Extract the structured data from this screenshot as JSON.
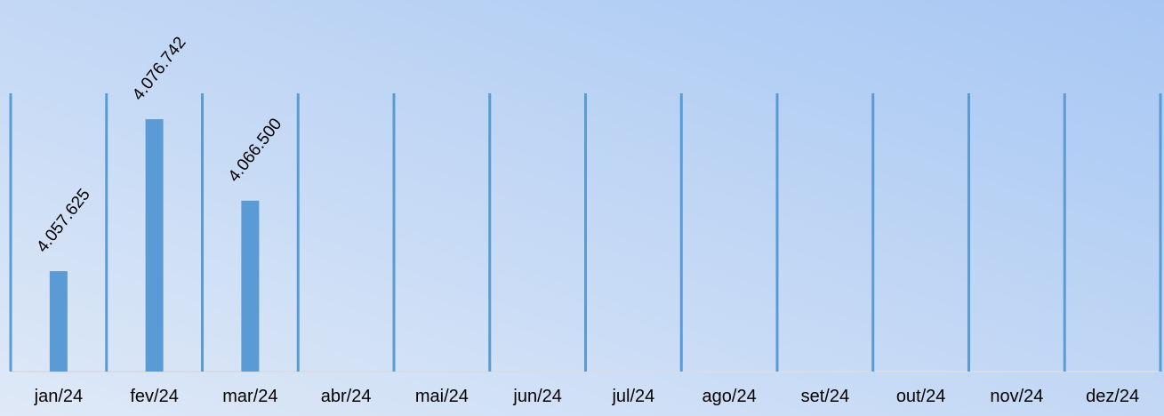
{
  "chart_data": {
    "type": "bar",
    "categories": [
      "jan/24",
      "fev/24",
      "mar/24",
      "abr/24",
      "mai/24",
      "jun/24",
      "jul/24",
      "ago/24",
      "set/24",
      "out/24",
      "nov/24",
      "dez/24"
    ],
    "values": [
      4057625,
      4076742,
      4066500,
      null,
      null,
      null,
      null,
      null,
      null,
      null,
      null,
      null
    ],
    "value_labels": [
      "4.057.625",
      "4.076.742",
      "4.066.500",
      null,
      null,
      null,
      null,
      null,
      null,
      null,
      null,
      null
    ],
    "color": "#5b9bd5",
    "ylim": [
      4045000,
      4080000
    ]
  }
}
